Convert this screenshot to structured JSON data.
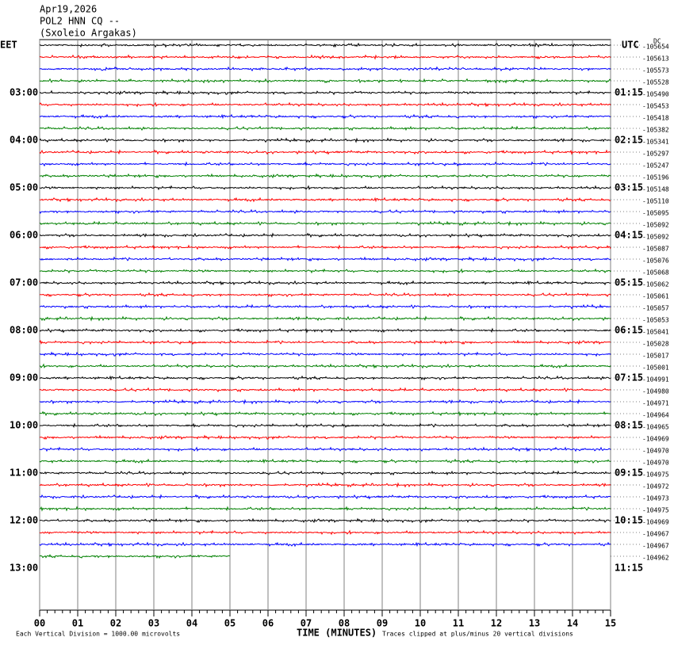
{
  "chart_data": {
    "type": "helicorder",
    "title": "Apr19,2026",
    "subtitle": "POL2 HNN CQ --",
    "station": "(Sxoleio Argakas)",
    "left_zone": "EET",
    "right_zone": "UTC",
    "dc_label": "DC",
    "left_hours": [
      "03:00",
      "04:00",
      "05:00",
      "06:00",
      "07:00",
      "08:00",
      "09:00",
      "10:00",
      "11:00",
      "12:00",
      "13:00"
    ],
    "right_hours": [
      "01:15",
      "02:15",
      "03:15",
      "04:15",
      "05:15",
      "06:15",
      "07:15",
      "08:15",
      "09:15",
      "10:15",
      "11:15"
    ],
    "trace_offsets": [
      -105654,
      -105613,
      -105573,
      -105528,
      -105490,
      -105453,
      -105418,
      -105382,
      -105341,
      -105297,
      -105247,
      -105196,
      -105148,
      -105110,
      -105095,
      -105092,
      -105092,
      -105087,
      -105076,
      -105068,
      -105062,
      -105061,
      -105057,
      -105053,
      -105041,
      -105028,
      -105017,
      -105001,
      -104991,
      -104980,
      -104971,
      -104964,
      -104965,
      -104969,
      -104970,
      -104970,
      -104975,
      -104972,
      -104973,
      -104975,
      -104969,
      -104967,
      -104967,
      -104962
    ],
    "trace_end_minutes": [
      15,
      15,
      15,
      15,
      15,
      15,
      15,
      15,
      15,
      15,
      15,
      15,
      15,
      15,
      15,
      15,
      15,
      15,
      15,
      15,
      15,
      15,
      15,
      15,
      15,
      15,
      15,
      15,
      15,
      15,
      15,
      15,
      15,
      15,
      15,
      15,
      15,
      15,
      15,
      15,
      15,
      15,
      15,
      5
    ],
    "trace_colors": [
      "#000000",
      "#ff0000",
      "#0000ff",
      "#008000"
    ],
    "xlim": [
      0,
      15
    ],
    "xticks": [
      {
        "value": 0,
        "label": "00"
      },
      {
        "value": 1,
        "label": "01"
      },
      {
        "value": 2,
        "label": "02"
      },
      {
        "value": 3,
        "label": "03"
      },
      {
        "value": 4,
        "label": "04"
      },
      {
        "value": 5,
        "label": "05"
      },
      {
        "value": 6,
        "label": "06"
      },
      {
        "value": 7,
        "label": "07"
      },
      {
        "value": 8,
        "label": "08"
      },
      {
        "value": 9,
        "label": "09"
      },
      {
        "value": 10,
        "label": "10"
      },
      {
        "value": 11,
        "label": "11"
      },
      {
        "value": 12,
        "label": "12"
      },
      {
        "value": 13,
        "label": "13"
      },
      {
        "value": 14,
        "label": "14"
      },
      {
        "value": 15,
        "label": "15"
      }
    ],
    "x_label": "TIME (MINUTES)",
    "scale_note": "Each Vertical Division = 1000.00 microvolts",
    "clip_note": "Traces clipped at plus/minus 20 vertical divisions",
    "grid": true
  }
}
